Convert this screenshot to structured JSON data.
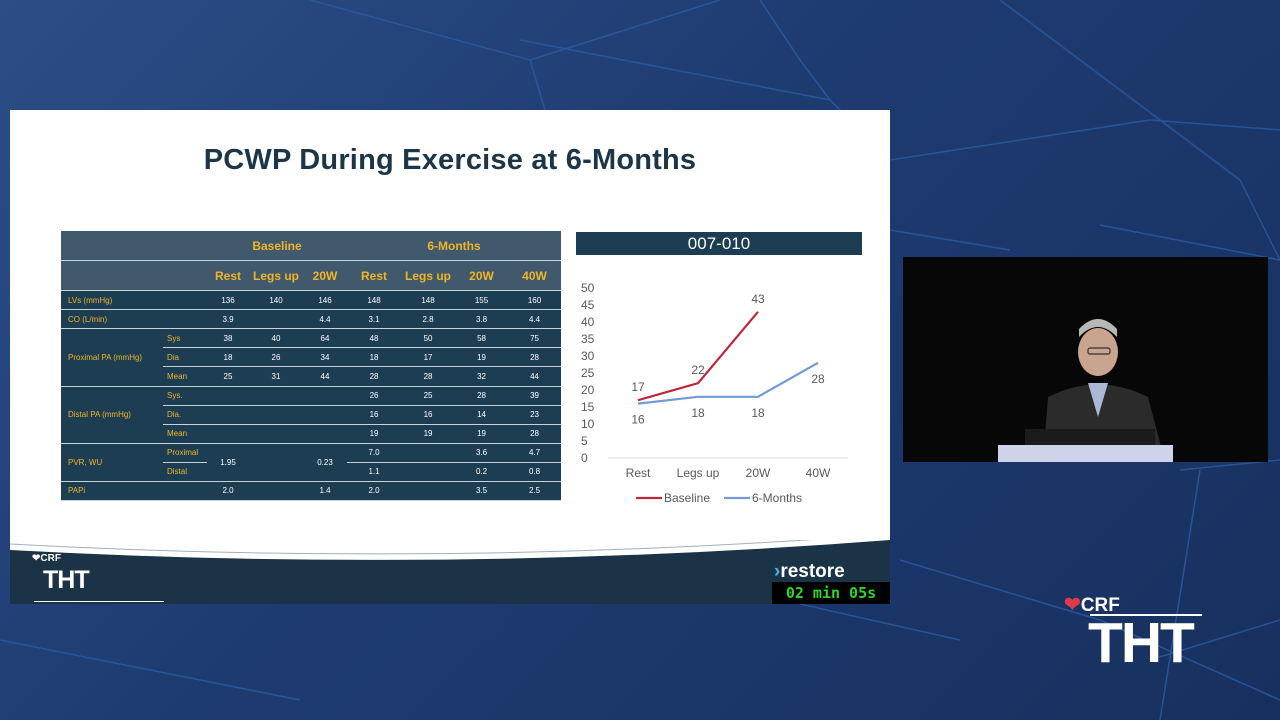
{
  "slide": {
    "title": "PCWP During Exercise at 6-Months",
    "table": {
      "group_headers": [
        "Baseline",
        "6-Months"
      ],
      "col_headers": [
        "Rest",
        "Legs up",
        "20W",
        "Rest",
        "Legs up",
        "20W",
        "40W"
      ],
      "rows": [
        {
          "label": "LVs (mmHg)",
          "values": [
            "136",
            "140",
            "146",
            "148",
            "148",
            "155",
            "160"
          ]
        },
        {
          "label": "CO (L/min)",
          "values": [
            "3.9",
            "",
            "4.4",
            "3.1",
            "2.8",
            "3.8",
            "4.4"
          ]
        }
      ],
      "proximal_pa": {
        "label": "Proximal PA (mmHg)",
        "subrows": [
          {
            "label": "Sys",
            "values": [
              "38",
              "40",
              "64",
              "48",
              "50",
              "58",
              "75"
            ]
          },
          {
            "label": "Dia",
            "values": [
              "18",
              "26",
              "34",
              "18",
              "17",
              "19",
              "28"
            ]
          },
          {
            "label": "Mean",
            "values": [
              "25",
              "31",
              "44",
              "28",
              "28",
              "32",
              "44"
            ]
          }
        ]
      },
      "distal_pa": {
        "label": "Distal PA (mmHg)",
        "subrows": [
          {
            "label": "Sys.",
            "values": [
              "",
              "",
              "",
              "26",
              "25",
              "28",
              "39"
            ]
          },
          {
            "label": "Dia.",
            "values": [
              "",
              "",
              "",
              "16",
              "16",
              "14",
              "23"
            ]
          },
          {
            "label": "Mean",
            "values": [
              "",
              "",
              "",
              "19",
              "19",
              "19",
              "28"
            ]
          }
        ]
      },
      "pvr": {
        "label": "PVR, WU",
        "sub_labels": [
          "Proximal",
          "Distal"
        ],
        "baseline_values": [
          "1.95",
          "",
          "0.23"
        ],
        "proximal_values": [
          "7.0",
          "",
          "3.6",
          "4.7"
        ],
        "distal_values": [
          "1.1",
          "",
          "0.2",
          "0.8"
        ]
      },
      "papi": {
        "label": "PAPi",
        "values": [
          "2.0",
          "",
          "1.4",
          "2.0",
          "",
          "3.5",
          "2.5"
        ]
      }
    },
    "chart_title": "007-010",
    "brand_crf": "CRF",
    "brand_tht": "THT",
    "brand_restore": "restore"
  },
  "chart_data": {
    "type": "line",
    "categories": [
      "Rest",
      "Legs up",
      "20W",
      "40W"
    ],
    "series": [
      {
        "name": "Baseline",
        "values": [
          17,
          22,
          43,
          null
        ],
        "color": "#c0263b"
      },
      {
        "name": "6-Months",
        "values": [
          16,
          18,
          18,
          28
        ],
        "color": "#6f9bd8"
      }
    ],
    "ylim": [
      0,
      50
    ],
    "yticks": [
      "0",
      "5",
      "10",
      "15",
      "20",
      "25",
      "30",
      "35",
      "40",
      "45",
      "50"
    ],
    "legend": "bottom",
    "grid": false
  },
  "overlay": {
    "timer": "02 min 05s",
    "crf": "CRF",
    "tht": "THT"
  },
  "colors": {
    "accent_gold": "#f0b428",
    "table_bg": "#1d3d53",
    "title_color": "#1c3648",
    "baseline_line": "#c0263b",
    "six_month_line": "#6f9bd8",
    "timer_green": "#31d331"
  }
}
